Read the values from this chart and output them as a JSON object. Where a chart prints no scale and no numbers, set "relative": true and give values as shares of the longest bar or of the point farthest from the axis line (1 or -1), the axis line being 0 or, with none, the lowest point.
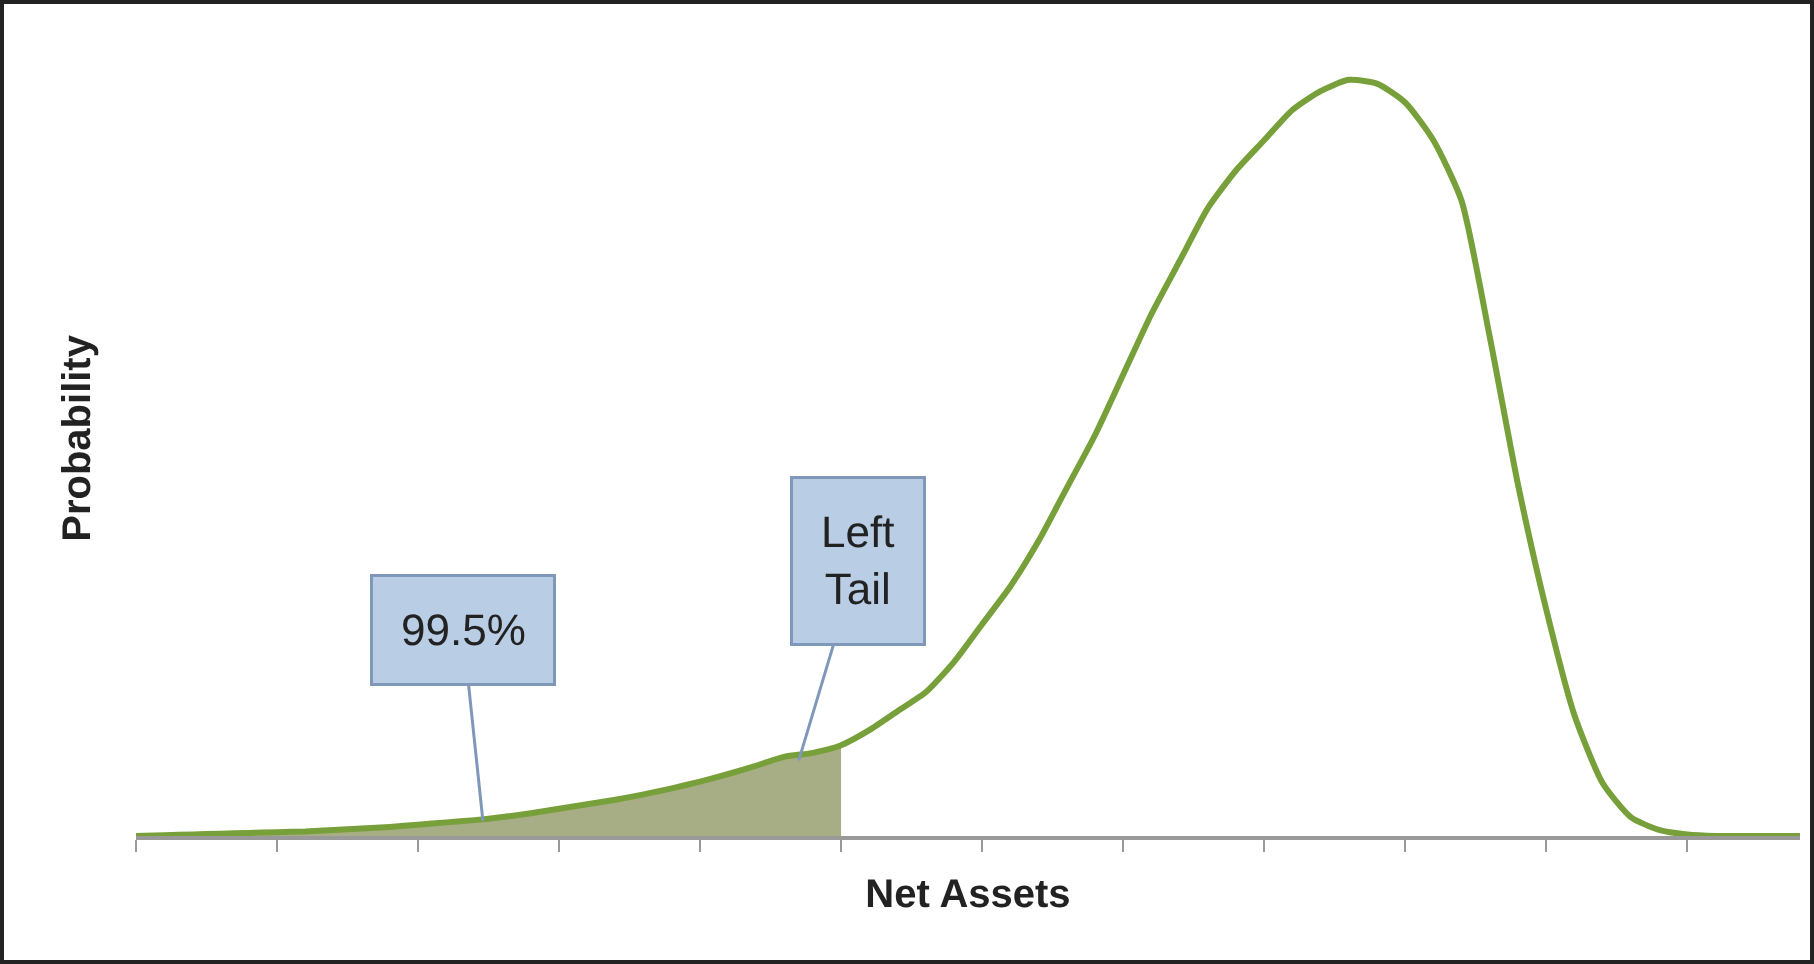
{
  "chart_data": {
    "type": "line",
    "relative": true,
    "xlabel": "Net Assets",
    "ylabel": "Probability",
    "categories": [
      null,
      null,
      null,
      null,
      null,
      null,
      null,
      null,
      null,
      null,
      null,
      null,
      null,
      null,
      null,
      null,
      null,
      null,
      null,
      null,
      null,
      null,
      null,
      null,
      null,
      null,
      null,
      null,
      null,
      null,
      null,
      null,
      null,
      null,
      null,
      null,
      null,
      null,
      null,
      null,
      null,
      null,
      null,
      null,
      null,
      null,
      null,
      null,
      null,
      null,
      null,
      null,
      null,
      null,
      null,
      null,
      null,
      null,
      null,
      null
    ],
    "series": [
      {
        "type": "area",
        "color": "#a7ae86",
        "values": [
          0,
          0.001,
          0.002,
          0.003,
          0.004,
          0.005,
          0.006,
          0.008,
          0.01,
          0.012,
          0.015,
          0.018,
          0.021,
          0.025,
          0.03,
          0.036,
          0.042,
          0.048,
          0.055,
          0.063,
          0.072,
          0.082,
          0.093,
          0.105,
          0.11,
          0.12,
          null,
          null,
          null,
          null,
          null,
          null,
          null,
          null,
          null,
          null,
          null,
          null,
          null,
          null,
          null,
          null,
          null,
          null,
          null,
          null,
          null,
          null,
          null,
          null,
          null,
          null,
          null,
          null,
          null,
          null,
          null,
          null,
          null,
          null
        ]
      },
      {
        "type": "line",
        "color": "#77a03a",
        "values": [
          0,
          0.001,
          0.002,
          0.003,
          0.004,
          0.005,
          0.006,
          0.008,
          0.01,
          0.012,
          0.015,
          0.018,
          0.021,
          0.025,
          0.03,
          0.036,
          0.042,
          0.048,
          0.055,
          0.063,
          0.072,
          0.082,
          0.093,
          0.105,
          0.11,
          0.12,
          0.14,
          0.165,
          0.19,
          0.23,
          0.28,
          0.33,
          0.39,
          0.46,
          0.53,
          0.61,
          0.69,
          0.76,
          0.83,
          0.88,
          0.92,
          0.96,
          0.985,
          1,
          0.995,
          0.97,
          0.92,
          0.84,
          0.66,
          0.465,
          0.3,
          0.16,
          0.07,
          0.025,
          0.008,
          0.002,
          0,
          0,
          0,
          0
        ]
      }
    ],
    "annotations": [
      "99.5%",
      "Left\nTail"
    ]
  }
}
